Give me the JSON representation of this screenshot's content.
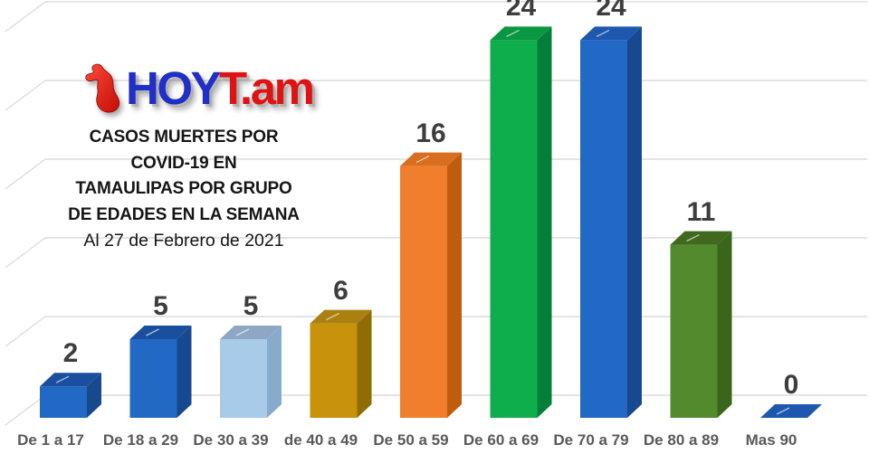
{
  "brand": {
    "name_prefix": "HOY",
    "name_suffix": "T.am",
    "prefix_color": "#1f2fc7",
    "suffix_color": "#e01313"
  },
  "header": {
    "title_lines": [
      "CASOS MUERTES POR",
      "COVID-19 EN",
      "TAMAULIPAS POR GRUPO",
      "DE EDADES EN LA SEMANA"
    ],
    "date_line": "Al 27 de Febrero de 2021"
  },
  "chart_data": {
    "type": "bar",
    "style": "3d-column",
    "title": "CASOS MUERTES POR COVID-19 EN TAMAULIPAS POR GRUPO DE EDADES EN LA SEMANA",
    "subtitle": "Al 27 de Febrero de 2021",
    "categories": [
      "De 1 a 17",
      "De 18 a 29",
      "De 30 a 39",
      "de 40 a 49",
      "De 50 a 59",
      "De 60 a 69",
      "De 70 a 79",
      "De 80 a 89",
      "Mas 90"
    ],
    "values": [
      2,
      5,
      5,
      6,
      16,
      24,
      24,
      11,
      0
    ],
    "bar_colors": [
      {
        "front": "#2268c5",
        "top": "#1a4f9f",
        "side": "#17498e"
      },
      {
        "front": "#2268c5",
        "top": "#1a4f9f",
        "side": "#17498e"
      },
      {
        "front": "#a8cbe9",
        "top": "#8ca8c4",
        "side": "#87abcb"
      },
      {
        "front": "#c8930a",
        "top": "#ac8010",
        "side": "#8f6c06"
      },
      {
        "front": "#f07e2d",
        "top": "#d86e1e",
        "side": "#c05c10"
      },
      {
        "front": "#0fae4c",
        "top": "#0a9742",
        "side": "#02803a"
      },
      {
        "front": "#2268c5",
        "top": "#1d57ae",
        "side": "#17498e"
      },
      {
        "front": "#538a2e",
        "top": "#40691e",
        "side": "#3a661c"
      },
      {
        "front": "#2160b6",
        "top": "#1d57ae",
        "side": "#17498e"
      }
    ],
    "value_axis": {
      "min": 0,
      "max": 25,
      "step": 5,
      "tick_labels_visible": false
    },
    "legend": "none",
    "grid": "on",
    "gridline_color": "#dcdcdc",
    "value_label_color": "#3d3d3d",
    "category_label_color": "#595959",
    "background": "#ffffff"
  }
}
